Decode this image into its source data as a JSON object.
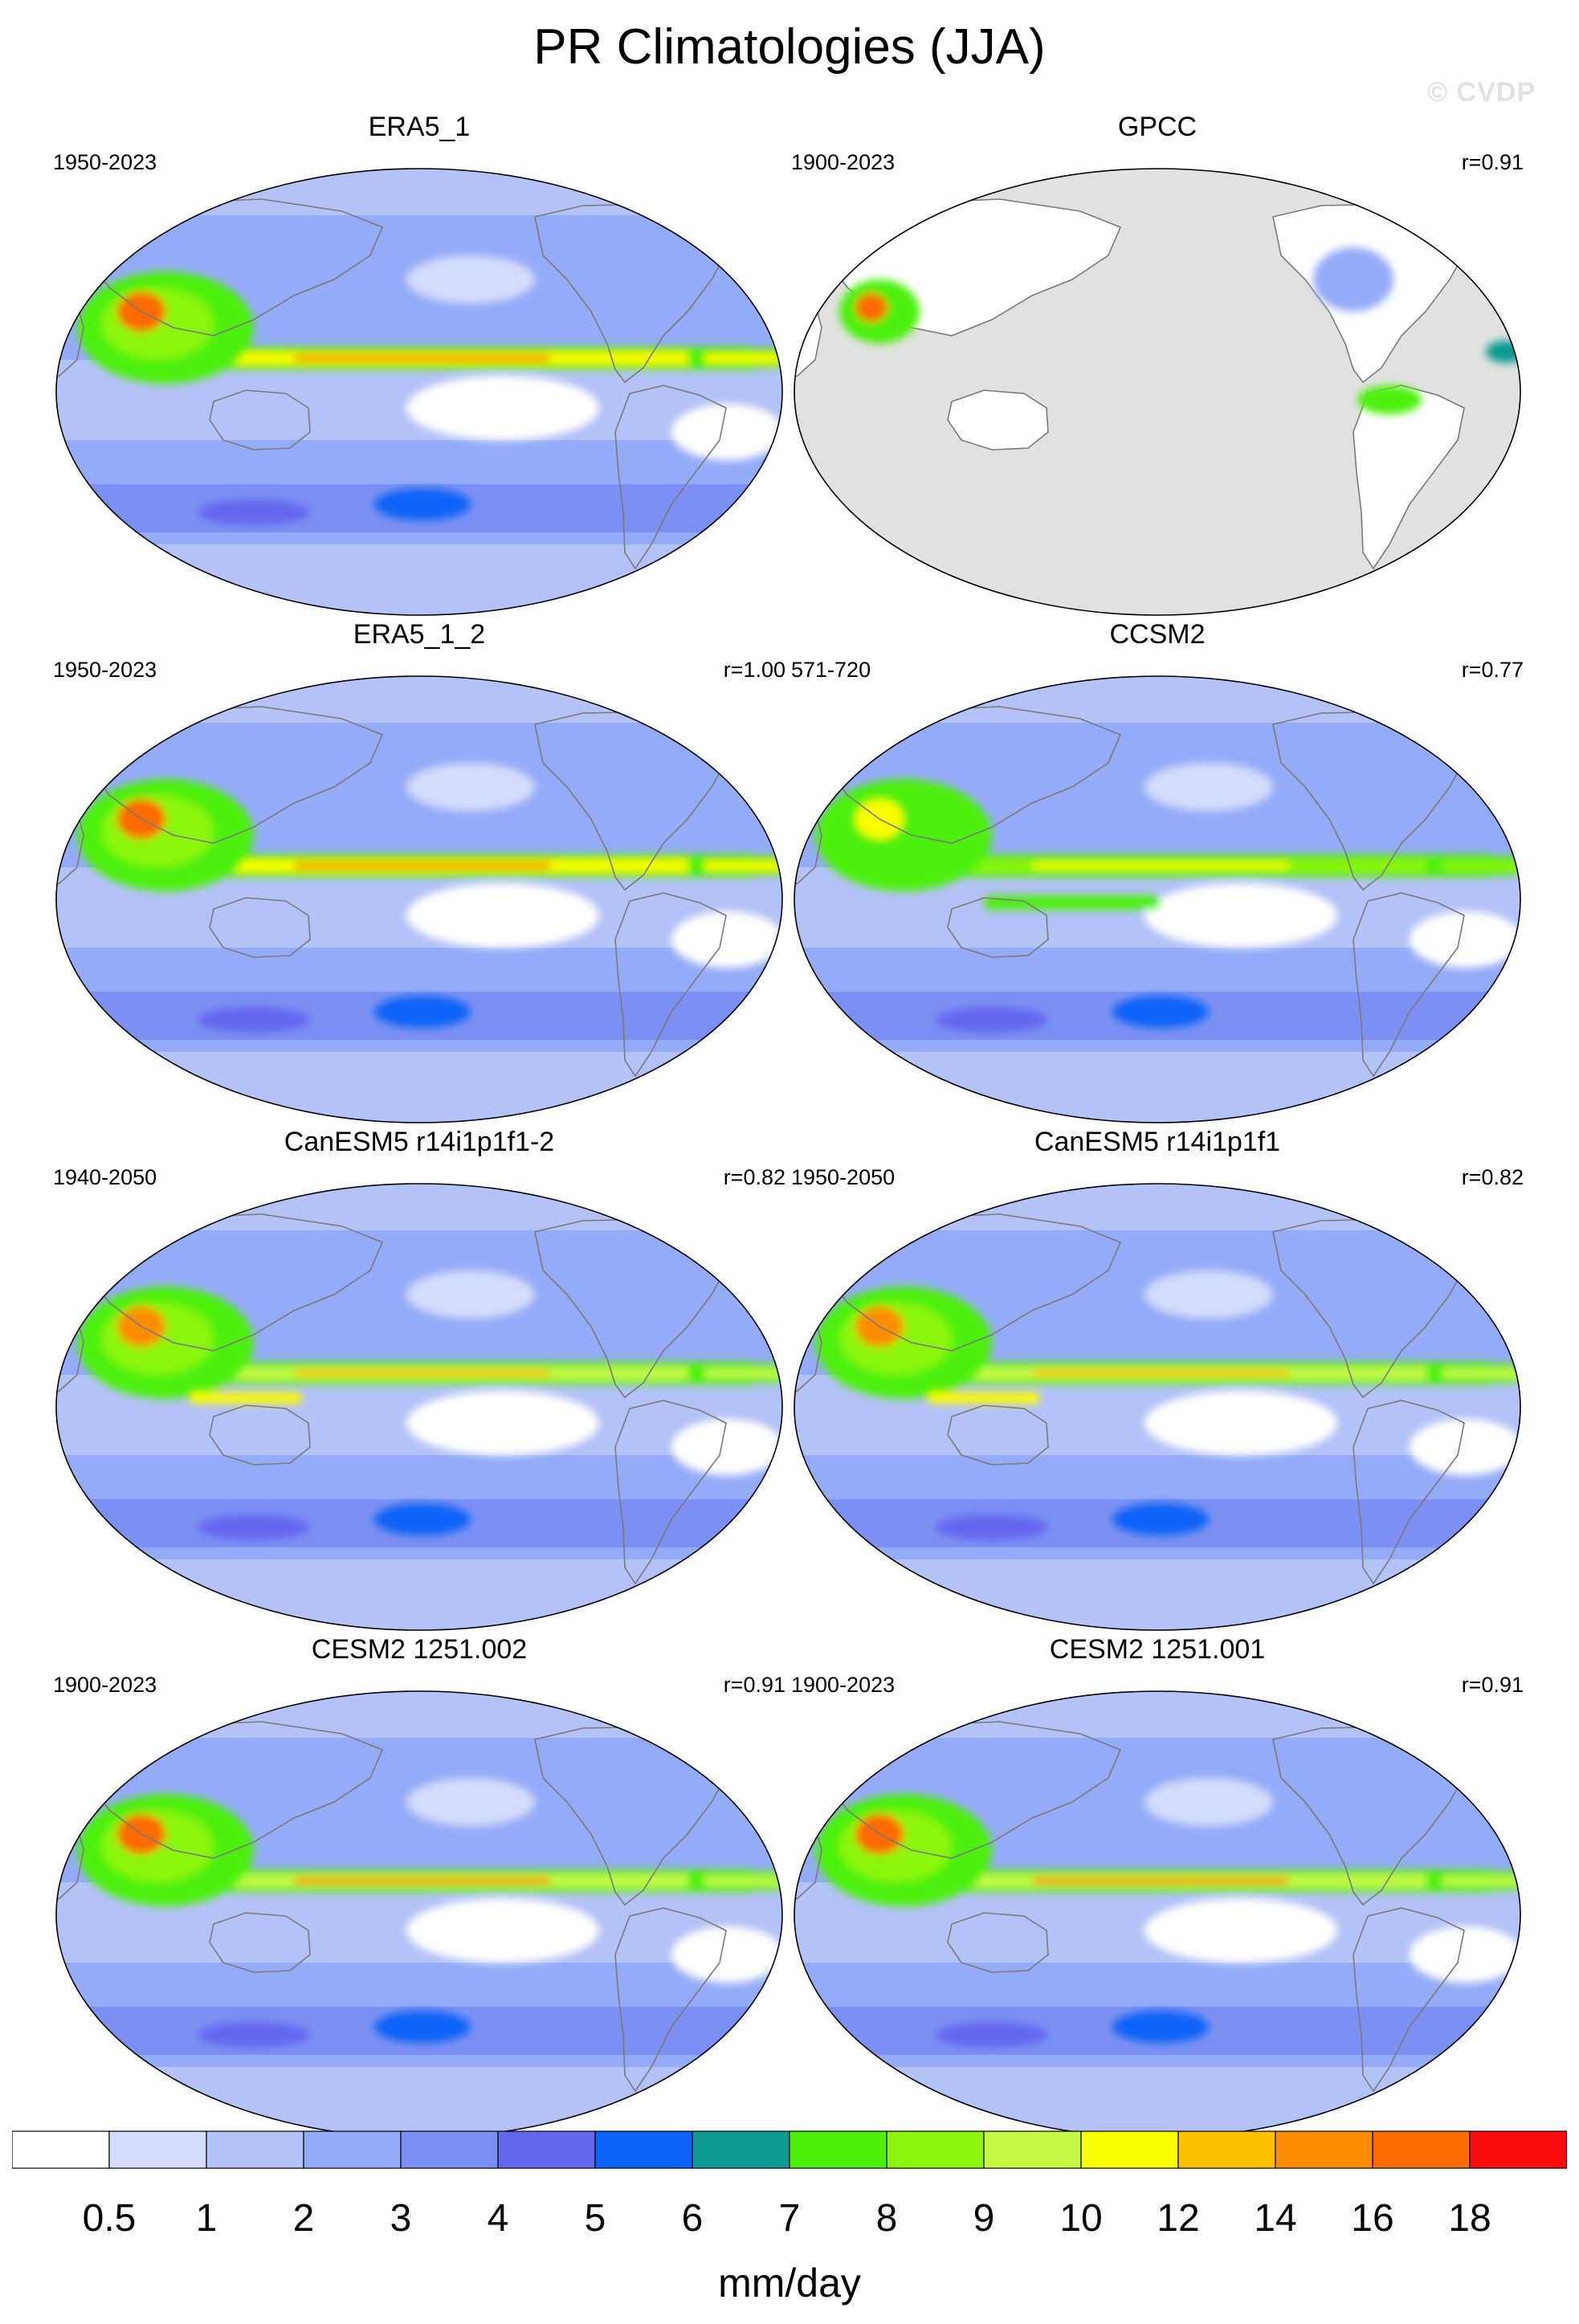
{
  "title": "PR Climatologies (JJA)",
  "watermark": "© CVDP",
  "panels": [
    {
      "title": "ERA5_1",
      "years": "1950-2023",
      "r": "",
      "style": "era5",
      "masked": false
    },
    {
      "title": "GPCC",
      "years": "1900-2023",
      "r": "r=0.91",
      "style": "gpcc",
      "masked": true
    },
    {
      "title": "ERA5_1_2",
      "years": "1950-2023",
      "r": "r=1.00",
      "style": "era5",
      "masked": false
    },
    {
      "title": "CCSM2",
      "years": "571-720",
      "r": "r=0.77",
      "style": "ccsm",
      "masked": false
    },
    {
      "title": "CanESM5 r14i1p1f1-2",
      "years": "1940-2050",
      "r": "r=0.82",
      "style": "canesm",
      "masked": false
    },
    {
      "title": "CanESM5 r14i1p1f1",
      "years": "1950-2050",
      "r": "r=0.82",
      "style": "canesm",
      "masked": false
    },
    {
      "title": "CESM2 1251.002",
      "years": "1900-2023",
      "r": "r=0.91",
      "style": "cesm",
      "masked": false
    },
    {
      "title": "CESM2 1251.001",
      "years": "1900-2023",
      "r": "r=0.91",
      "style": "cesm",
      "masked": false
    }
  ],
  "colorbar": {
    "label": "mm/day",
    "ticks": [
      "0.5",
      "1",
      "2",
      "3",
      "4",
      "5",
      "6",
      "7",
      "8",
      "9",
      "10",
      "12",
      "14",
      "16",
      "18"
    ],
    "colors": [
      "#ffffff",
      "#d4dcfb",
      "#b3c2f7",
      "#94abf7",
      "#7b90f2",
      "#6468ef",
      "#0c63f7",
      "#0f9a93",
      "#4ef00b",
      "#8bf50e",
      "#c4f946",
      "#fafc00",
      "#fbbe00",
      "#fd8d00",
      "#fc6b00",
      "#fc0d0d"
    ]
  }
}
